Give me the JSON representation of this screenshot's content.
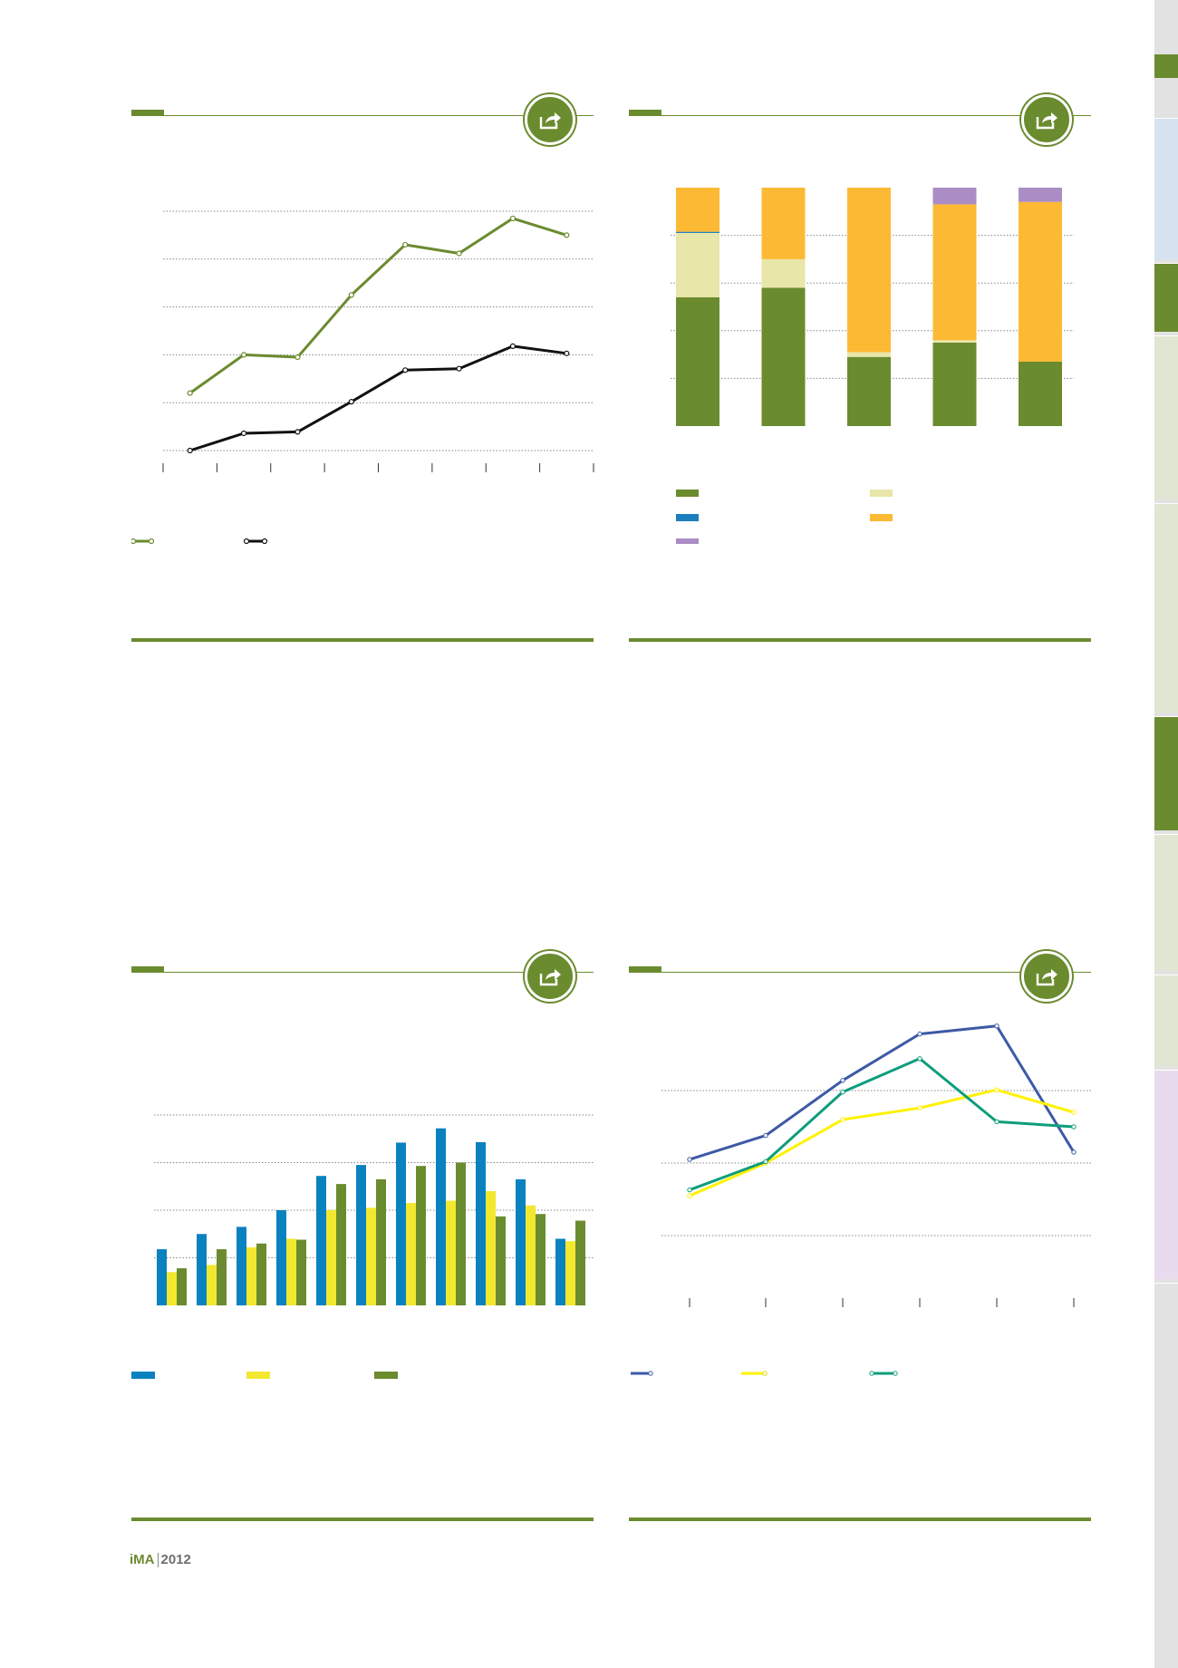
{
  "footer": {
    "brand": "iMA",
    "year": "2012"
  },
  "sidebar": {
    "tab_colors": [
      "#d7e3f0",
      "#6b8b2f",
      "#e0e6d2",
      "#e0e6d2",
      "#6b8b2f",
      "#e0e6d2",
      "#e0e6d2",
      "#e9dbee",
      "#e2e2e2"
    ]
  },
  "colors": {
    "accent": "#6b8b2f"
  },
  "icons": {
    "share": "share-icon"
  },
  "chart_data": [
    {
      "type": "line",
      "x_ticks": 9,
      "series": [
        {
          "color": "#6b8b2f",
          "values": [
            1.2,
            2.0,
            1.95,
            3.25,
            4.3,
            4.12,
            4.85,
            4.5
          ]
        },
        {
          "color": "#111111",
          "values": [
            0.0,
            0.36,
            0.39,
            1.02,
            1.68,
            1.71,
            2.18,
            2.03
          ]
        }
      ],
      "ylim": [
        0,
        5
      ],
      "grid": true,
      "legend_placement": "bottom-left"
    },
    {
      "type": "bar",
      "stacked": true,
      "categories_count": 5,
      "series": [
        {
          "color": "#6b8b2f",
          "values": [
            54,
            58,
            29,
            35,
            27
          ]
        },
        {
          "color": "#e8e6a8",
          "values": [
            27,
            12,
            2,
            1,
            0
          ]
        },
        {
          "color": "#1b7fbf",
          "values": [
            0.5,
            0,
            0,
            0,
            0
          ]
        },
        {
          "color": "#fcb934",
          "values": [
            18.5,
            30,
            69,
            57,
            67
          ]
        },
        {
          "color": "#ab8dc5",
          "values": [
            0,
            0,
            0,
            7,
            6
          ]
        }
      ],
      "ylim": [
        0,
        100
      ],
      "grid": true,
      "legend_placement": "bottom"
    },
    {
      "type": "bar",
      "categories_count": 11,
      "series": [
        {
          "color": "#0a82bf",
          "values": [
            1.18,
            1.5,
            1.65,
            2.0,
            2.72,
            2.95,
            3.42,
            3.72,
            3.43,
            2.65,
            1.4
          ]
        },
        {
          "color": "#f2e830",
          "values": [
            0.7,
            0.85,
            1.22,
            1.4,
            2.0,
            2.05,
            2.15,
            2.2,
            2.4,
            2.1,
            1.35
          ]
        },
        {
          "color": "#6b8b2f",
          "values": [
            0.78,
            1.18,
            1.3,
            1.38,
            2.55,
            2.65,
            2.93,
            3.0,
            1.87,
            1.92,
            1.78
          ]
        }
      ],
      "ylim": [
        0,
        4
      ],
      "grid": true,
      "legend_placement": "bottom-left"
    },
    {
      "type": "line",
      "x_ticks": 6,
      "series": [
        {
          "color": "#3d59a6",
          "values": [
            0.05,
            0.38,
            1.14,
            1.78,
            1.89,
            0.15
          ]
        },
        {
          "color": "#fff200",
          "values": [
            -0.45,
            0.0,
            0.6,
            0.76,
            1.01,
            0.7
          ]
        },
        {
          "color": "#0e9d7c",
          "values": [
            -0.37,
            0.02,
            0.98,
            1.44,
            0.57,
            0.5
          ]
        }
      ],
      "ylim": [
        -1,
        2
      ],
      "grid": true,
      "legend_placement": "bottom-left"
    }
  ]
}
